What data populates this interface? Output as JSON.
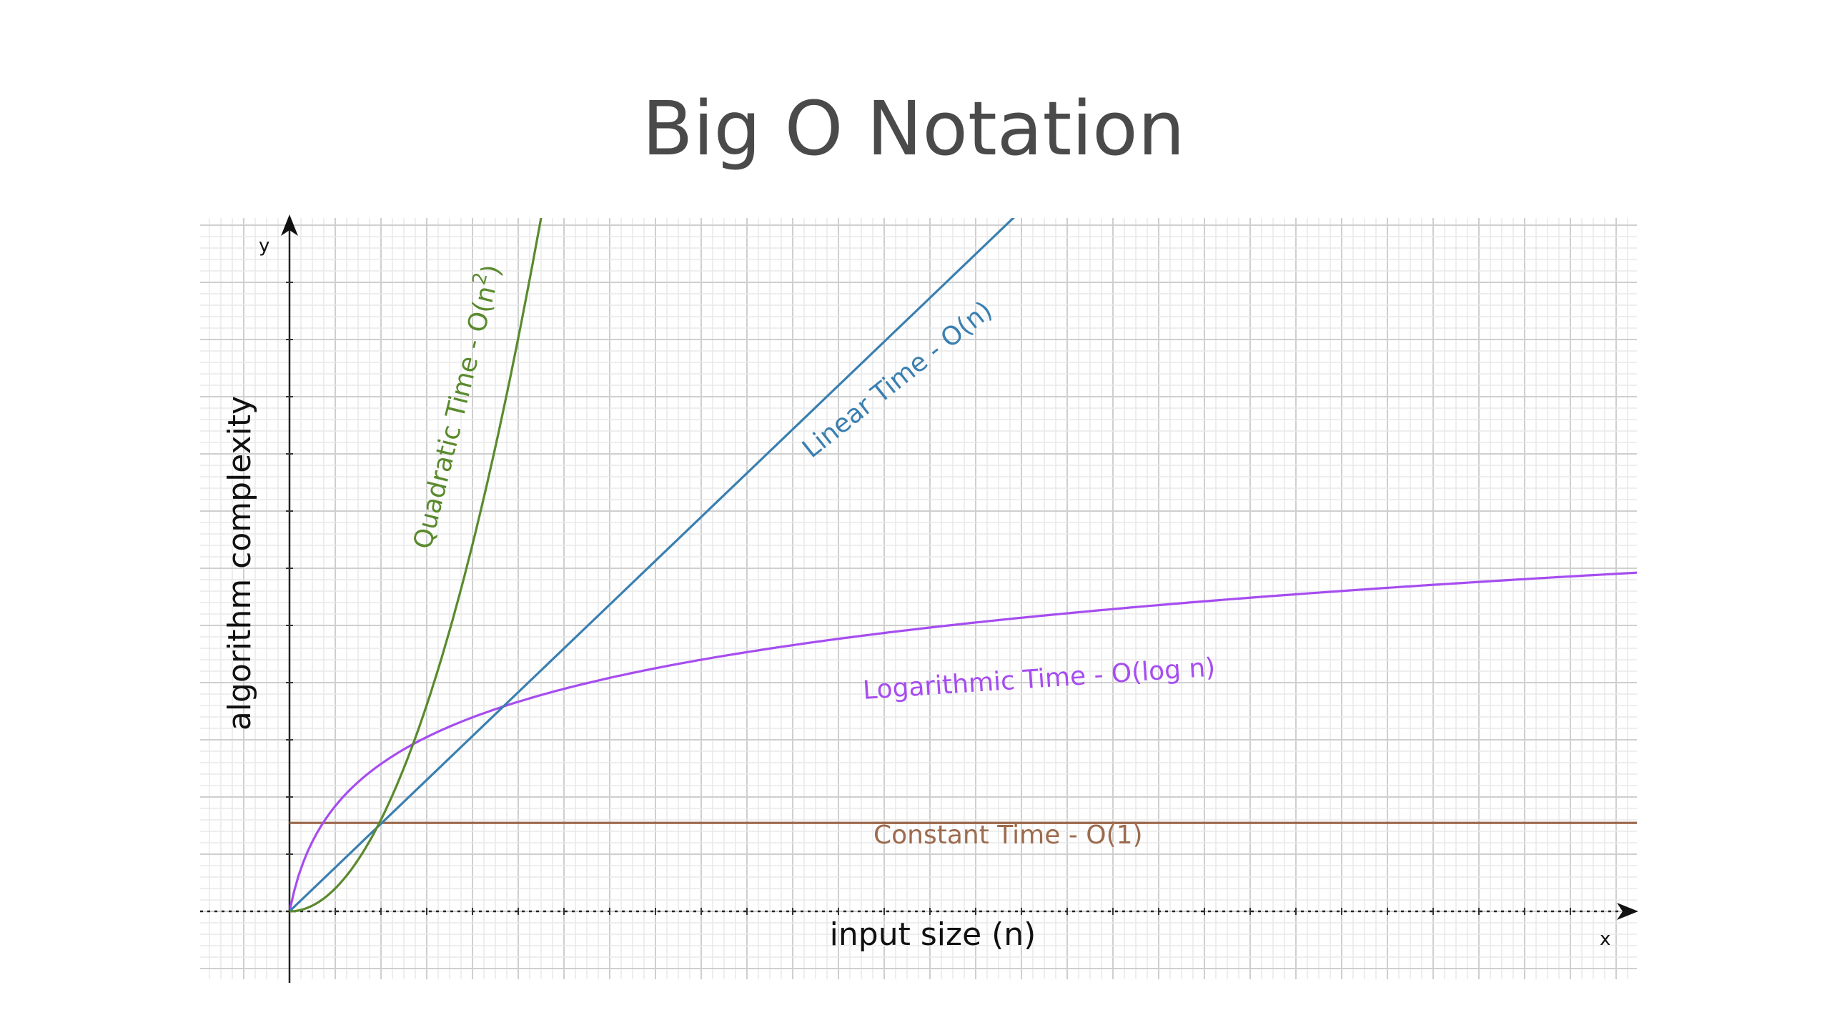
{
  "chart_data": {
    "type": "line",
    "title": "Big O Notation",
    "xlabel": "input size (n)",
    "ylabel": "algorithm complexity",
    "x_axis_symbol": "x",
    "y_axis_symbol": "y",
    "xlim": [
      0,
      30
    ],
    "ylim": [
      0,
      12
    ],
    "grid": true,
    "series": [
      {
        "name": "Constant Time - O(1)",
        "color": "#9c6b4e",
        "function": "constant",
        "x": [
          0,
          30
        ],
        "y": [
          1.25,
          1.25
        ]
      },
      {
        "name": "Logarithmic Time - O(log n)",
        "color": "#a64df0",
        "function": "logarithmic",
        "x": [
          0,
          1,
          2,
          3,
          4,
          6,
          8,
          10,
          13,
          16,
          19,
          22,
          25,
          28,
          30
        ],
        "y": [
          0,
          1.5,
          2.1,
          2.58,
          2.93,
          3.44,
          3.82,
          4.12,
          4.47,
          4.75,
          4.98,
          5.18,
          5.36,
          5.51,
          5.6
        ]
      },
      {
        "name": "Linear Time - O(n)",
        "color": "#3a7fb0",
        "function": "linear",
        "x": [
          0,
          19.5
        ],
        "y": [
          0,
          12
        ]
      },
      {
        "name": "Quadratic Time - O(n^2)",
        "color": "#5a8a2e",
        "function": "quadratic",
        "x": [
          0,
          1,
          2,
          3,
          4,
          5,
          6
        ],
        "y": [
          0,
          0.32,
          1.28,
          2.88,
          5.12,
          8.0,
          11.52
        ]
      }
    ],
    "labels": {
      "constant": "Constant Time - O(1)",
      "logarithmic": "Logarithmic Time - O(log n)",
      "linear": "Linear Time - O(n)",
      "quadratic_prefix": "Quadratic Time - O(n",
      "quadratic_exponent": "2",
      "quadratic_suffix": ")"
    }
  }
}
